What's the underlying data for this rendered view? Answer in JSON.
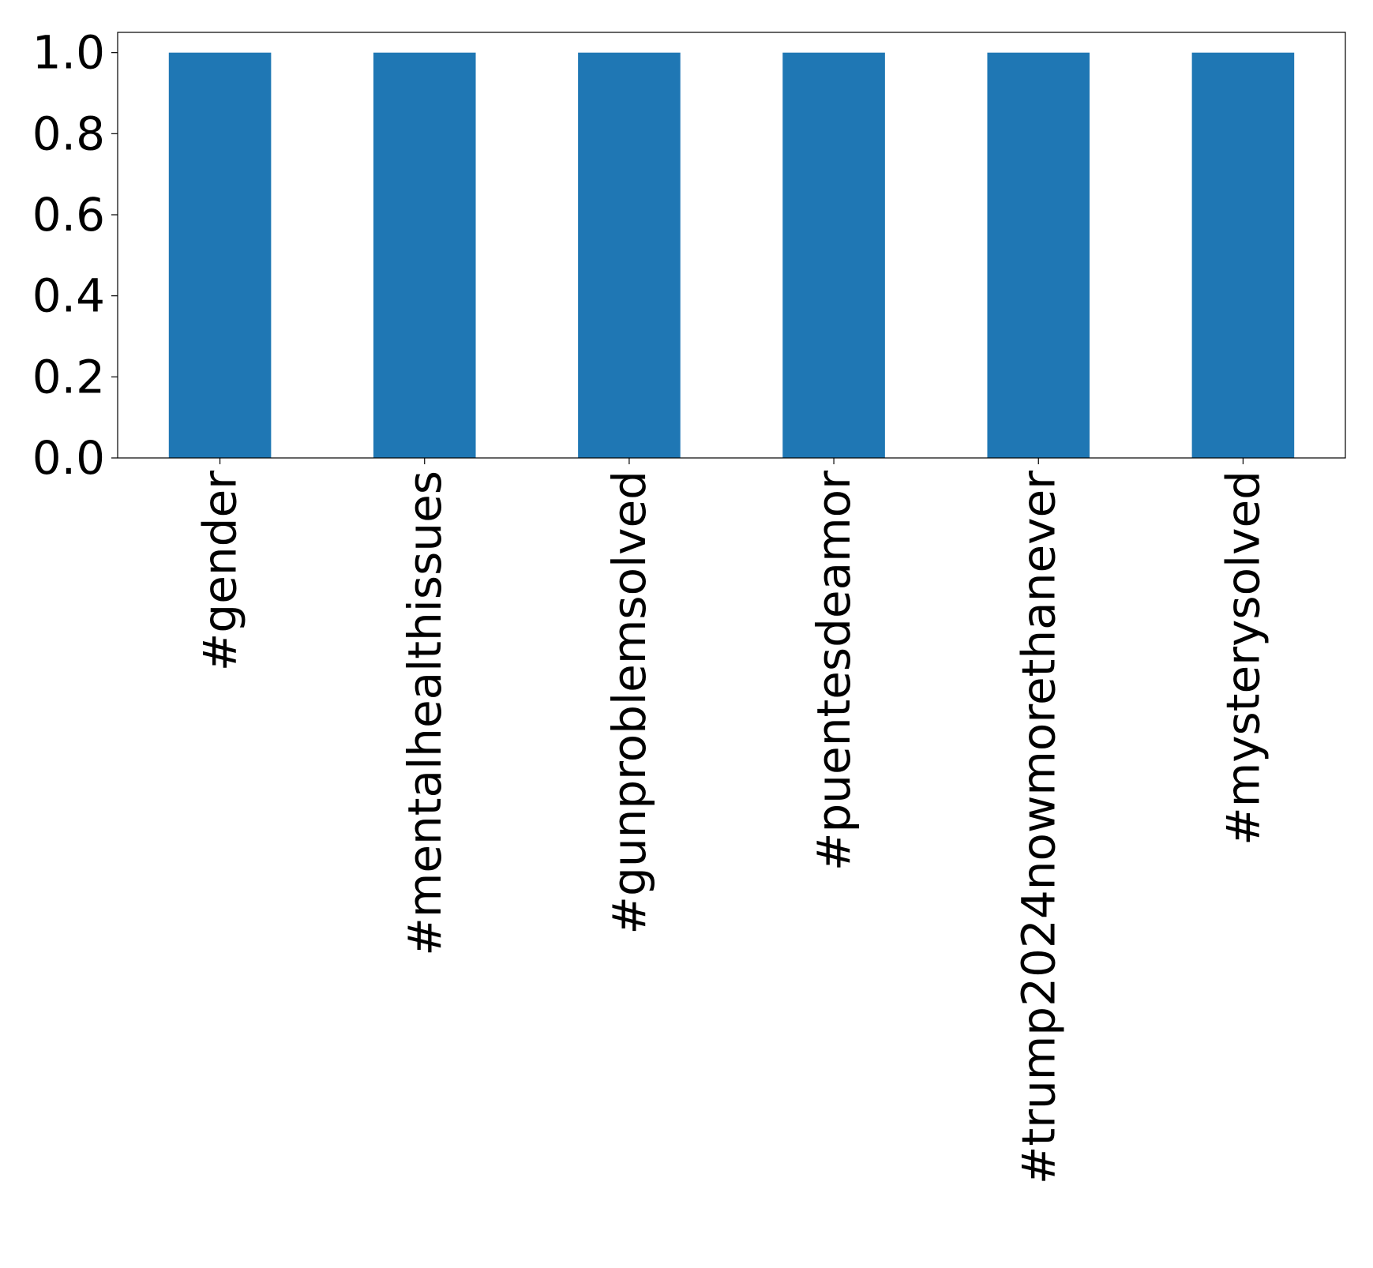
{
  "chart_data": {
    "type": "bar",
    "title": "",
    "xlabel": "",
    "ylabel": "",
    "categories": [
      "#gender",
      "#mentalhealthissues",
      "#gunproblemsolved",
      "#puentesdeamor",
      "#trump2024nowmorethanever",
      "#mysterysolved"
    ],
    "values": [
      1.0,
      1.0,
      1.0,
      1.0,
      1.0,
      1.0
    ],
    "ylim": [
      0,
      1.05
    ],
    "yticks": [
      "0.0",
      "0.2",
      "0.4",
      "0.6",
      "0.8",
      "1.0"
    ],
    "ytick_values": [
      0.0,
      0.2,
      0.4,
      0.6,
      0.8,
      1.0
    ],
    "bar_color": "#1f77b4",
    "grid": false,
    "legend": "none"
  }
}
